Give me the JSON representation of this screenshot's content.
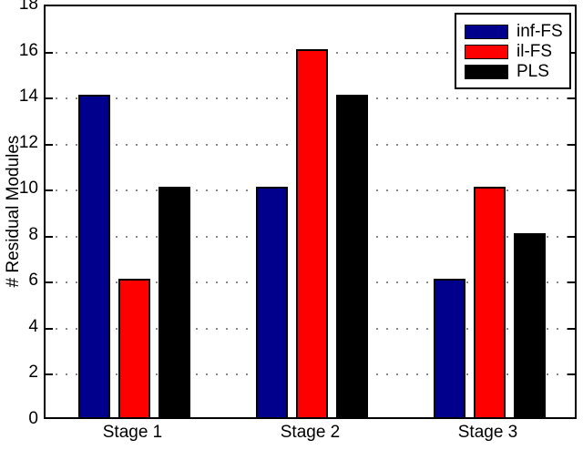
{
  "chart_data": {
    "type": "bar",
    "title": "",
    "categories": [
      "Stage 1",
      "Stage 2",
      "Stage 3"
    ],
    "series": [
      {
        "name": "inf-FS",
        "color": "#00008C",
        "values": [
          14,
          10,
          6
        ]
      },
      {
        "name": "il-FS",
        "color": "#FF0000",
        "values": [
          6,
          16,
          10
        ]
      },
      {
        "name": "PLS",
        "color": "#000000",
        "values": [
          10,
          14,
          8
        ]
      }
    ],
    "xlabel": "",
    "ylabel": "# Residual Modules",
    "ylim": [
      0,
      18
    ],
    "ytick_step": 2,
    "yticks": [
      0,
      2,
      4,
      6,
      8,
      10,
      12,
      14,
      16,
      18
    ],
    "grid": "horizontal-dotted",
    "legend_position": "top-right",
    "colors": {
      "axis": "#000000",
      "gridline": "#8a8a8a",
      "background": "#ffffff"
    }
  }
}
